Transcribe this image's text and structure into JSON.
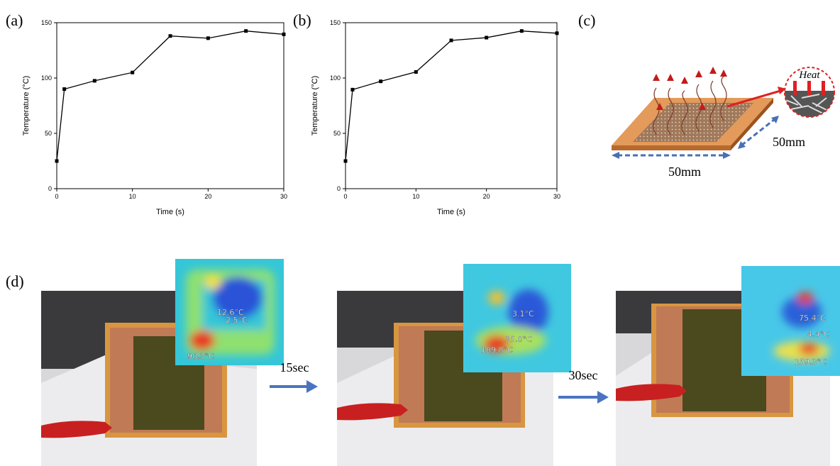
{
  "chart_data": [
    {
      "type": "line",
      "panel_label": "(a)",
      "xlabel": "Time (s)",
      "ylabel": "Temperature (°C)",
      "x": [
        0,
        1,
        5,
        10,
        15,
        20,
        25,
        30
      ],
      "values": [
        25,
        90,
        97.5,
        105,
        138,
        136,
        142.5,
        139.5
      ],
      "xlim": [
        0,
        30
      ],
      "ylim": [
        0,
        150
      ],
      "xticks": [
        0,
        10,
        20,
        30
      ],
      "yticks": [
        0,
        50,
        100,
        150
      ],
      "color": "#000000"
    },
    {
      "type": "line",
      "panel_label": "(b)",
      "xlabel": "Time (s)",
      "ylabel": "Temperature (°C)",
      "x": [
        0,
        1,
        5,
        10,
        15,
        20,
        25,
        30
      ],
      "values": [
        25,
        89.5,
        97,
        105.5,
        134,
        136.5,
        142.5,
        140.5
      ],
      "xlim": [
        0,
        30
      ],
      "ylim": [
        0,
        150
      ],
      "xticks": [
        0,
        10,
        20,
        30
      ],
      "yticks": [
        0,
        50,
        100,
        150
      ],
      "color": "#000000"
    }
  ],
  "diagram": {
    "panel_label": "(c)",
    "inset_label": "Heat",
    "width_label": "50mm",
    "depth_label": "50mm"
  },
  "photos": {
    "panel_label": "(d)",
    "steps": [
      "15sec",
      "30sec"
    ],
    "frames": [
      {
        "readings": [
          "12.6°C",
          "2.5°C",
          "98.3°C"
        ]
      },
      {
        "readings": [
          "3.1°C",
          "35.0°C",
          "109.8°C"
        ]
      },
      {
        "readings": [
          "75.4°C",
          "4.4°C",
          "159.3°C"
        ]
      }
    ]
  }
}
